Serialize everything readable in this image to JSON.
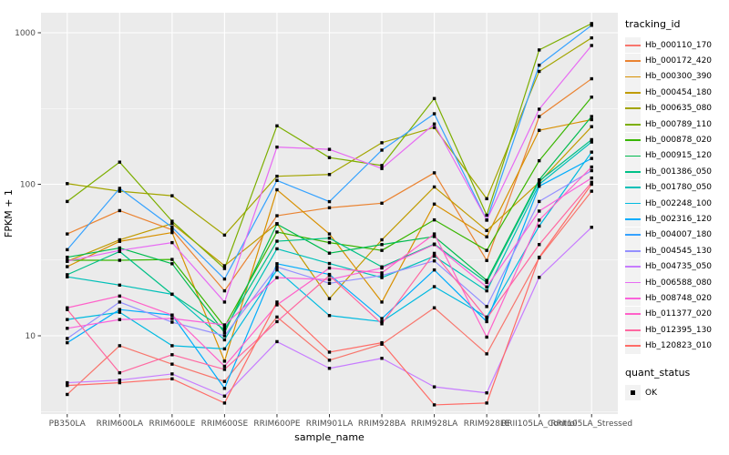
{
  "chart_data": {
    "type": "line",
    "title": "",
    "xlabel": "sample_name",
    "ylabel": "FPKM + 1",
    "y_scale": "log10",
    "y_ticks": [
      10,
      100,
      1000
    ],
    "y_minor": [
      3.162,
      31.62,
      316.2
    ],
    "legend_title": "tracking_id",
    "legend_position": "right",
    "panel_bg": "#EBEBEB",
    "grid_color": "#FFFFFF",
    "point_color": "#000000",
    "axis_text_color": "#4D4D4D",
    "categories": [
      "PB350LA",
      "RRIM600LA",
      "RRIM600LE",
      "RRIM600SE",
      "RRIM600PE",
      "RRIM901LA",
      "RRIM928BA",
      "RRIM928LA",
      "RRIM928LE",
      "RRII105LA_Control",
      "RRII105LA_Stressed"
    ],
    "series": [
      {
        "name": "Hb_000110_170",
        "color": "#F8766D",
        "values": [
          4.1,
          8.6,
          6.5,
          5.0,
          13.3,
          6.9,
          8.8,
          15.3,
          7.6,
          32.7,
          90
        ]
      },
      {
        "name": "Hb_000172_420",
        "color": "#EA8331",
        "values": [
          47,
          67,
          50,
          19.8,
          62,
          70,
          75,
          119,
          31.4,
          280,
          497
        ]
      },
      {
        "name": "Hb_000300_390",
        "color": "#D89000",
        "values": [
          28.6,
          42,
          48,
          6.8,
          92,
          47,
          16.7,
          74,
          45,
          227,
          267
        ]
      },
      {
        "name": "Hb_000454_180",
        "color": "#C09B00",
        "values": [
          31,
          43,
          55,
          29,
          55,
          17.6,
          43,
          96,
          49.5,
          103,
          240
        ]
      },
      {
        "name": "Hb_000635_080",
        "color": "#A3A500",
        "values": [
          101,
          90,
          84,
          46.2,
          113,
          116,
          188,
          237,
          80.3,
          556,
          925
        ]
      },
      {
        "name": "Hb_000789_110",
        "color": "#7CAE00",
        "values": [
          77,
          140,
          57,
          27.8,
          243,
          150,
          133,
          368,
          62.5,
          770,
          1150
        ]
      },
      {
        "name": "Hb_000878_020",
        "color": "#39B600",
        "values": [
          31.5,
          31.5,
          31.9,
          11.5,
          48.4,
          41.2,
          36.6,
          58.2,
          36.6,
          143,
          376
        ]
      },
      {
        "name": "Hb_000915_120",
        "color": "#00BB4E",
        "values": [
          33,
          38,
          29.9,
          10.5,
          54.6,
          35.1,
          40,
          45.2,
          23.2,
          107,
          280
        ]
      },
      {
        "name": "Hb_001386_050",
        "color": "#00C087",
        "values": [
          25.3,
          36,
          18.8,
          11.0,
          42.1,
          44.1,
          28.5,
          40.3,
          22.5,
          105,
          197
        ]
      },
      {
        "name": "Hb_001780_050",
        "color": "#00C0B8",
        "values": [
          24.5,
          21.6,
          18.8,
          9.4,
          37.5,
          30,
          24.2,
          33.5,
          19.8,
          100,
          190
        ]
      },
      {
        "name": "Hb_002248_100",
        "color": "#00BAE0",
        "values": [
          12.8,
          14.3,
          8.6,
          8.2,
          27.2,
          13.6,
          12.4,
          21.1,
          13.3,
          53,
          163
        ]
      },
      {
        "name": "Hb_002316_120",
        "color": "#00ACFC",
        "values": [
          9.0,
          14.9,
          13.7,
          4.5,
          29.9,
          25.4,
          13.0,
          27.2,
          12.4,
          97,
          148
        ]
      },
      {
        "name": "Hb_004007_180",
        "color": "#35A2FF",
        "values": [
          37,
          94,
          52,
          23.7,
          106,
          76.8,
          168,
          292,
          58,
          611,
          1120
        ]
      },
      {
        "name": "Hb_004545_130",
        "color": "#9590FF",
        "values": [
          9.6,
          16.7,
          12.3,
          10.0,
          28.5,
          22.2,
          25.0,
          31.2,
          15.6,
          77,
          123
        ]
      },
      {
        "name": "Hb_004735_050",
        "color": "#C77CFF",
        "values": [
          4.9,
          5.1,
          5.6,
          4.0,
          9.15,
          6.1,
          7.1,
          4.6,
          4.2,
          24.3,
          52
        ]
      },
      {
        "name": "Hb_006588_080",
        "color": "#E76BF3",
        "values": [
          31.1,
          36.6,
          41.2,
          16.7,
          176,
          170,
          127,
          250,
          58,
          313,
          824
        ]
      },
      {
        "name": "Hb_008748_020",
        "color": "#FA62DB",
        "values": [
          11.2,
          12.8,
          13.0,
          11.8,
          24.2,
          23.5,
          28.0,
          40.0,
          21.0,
          66.5,
          110
        ]
      },
      {
        "name": "Hb_011377_020",
        "color": "#FF61C9",
        "values": [
          15.3,
          18.3,
          13.7,
          6.3,
          16.0,
          28.0,
          26.0,
          47.0,
          9.8,
          58,
          130
        ]
      },
      {
        "name": "Hb_012395_130",
        "color": "#FF68A1",
        "values": [
          14.9,
          5.7,
          7.5,
          6.0,
          12.4,
          25.0,
          12.0,
          35.0,
          13.0,
          40,
          103
        ]
      },
      {
        "name": "Hb_120823_010",
        "color": "#FF6C67",
        "values": [
          4.7,
          4.9,
          5.2,
          3.6,
          16.7,
          7.8,
          9.0,
          3.5,
          3.6,
          33,
          100
        ]
      }
    ],
    "legend2_title": "quant_status",
    "legend2_items": [
      "OK"
    ]
  }
}
